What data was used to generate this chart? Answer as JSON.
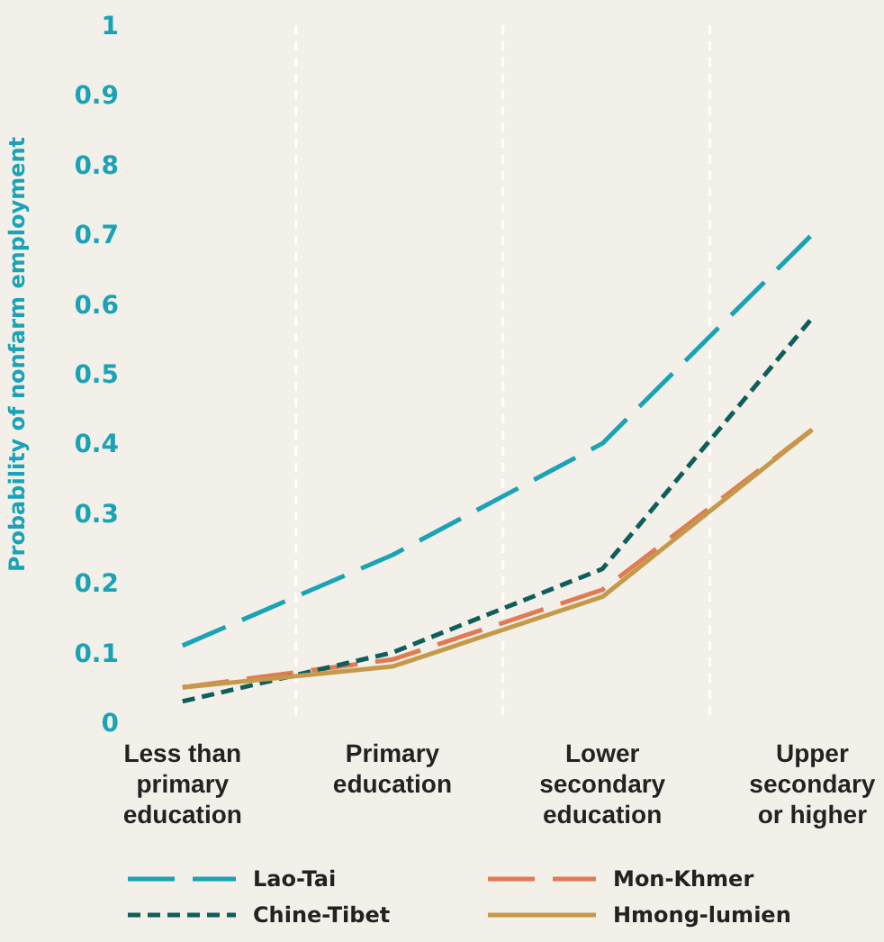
{
  "chart_data": {
    "type": "line",
    "ylabel": "Probability of nonfarm employment",
    "categories": [
      "Less than primary education",
      "Primary education",
      "Lower secondary education",
      "Upper secondary or higher"
    ],
    "series": [
      {
        "name": "Lao-Tai",
        "color": "#1aa3b5",
        "line_style": "dashed",
        "values": [
          0.11,
          0.24,
          0.4,
          0.7
        ]
      },
      {
        "name": "Mon-Khmer",
        "color": "#e07b54",
        "line_style": "dashed",
        "values": [
          0.05,
          0.09,
          0.19,
          0.42
        ]
      },
      {
        "name": "Chine-Tibet",
        "color": "#0e5e5a",
        "line_style": "dotted",
        "values": [
          0.03,
          0.1,
          0.22,
          0.58
        ]
      },
      {
        "name": "Hmong-lumien",
        "color": "#c49a4a",
        "line_style": "solid",
        "values": [
          0.05,
          0.08,
          0.18,
          0.42
        ]
      }
    ],
    "ylim": [
      0,
      1
    ],
    "yticks": [
      0,
      0.1,
      0.2,
      0.3,
      0.4,
      0.5,
      0.6,
      0.7,
      0.8,
      0.9,
      1
    ],
    "grid": "x",
    "legend": "bottom",
    "marker": "none"
  }
}
